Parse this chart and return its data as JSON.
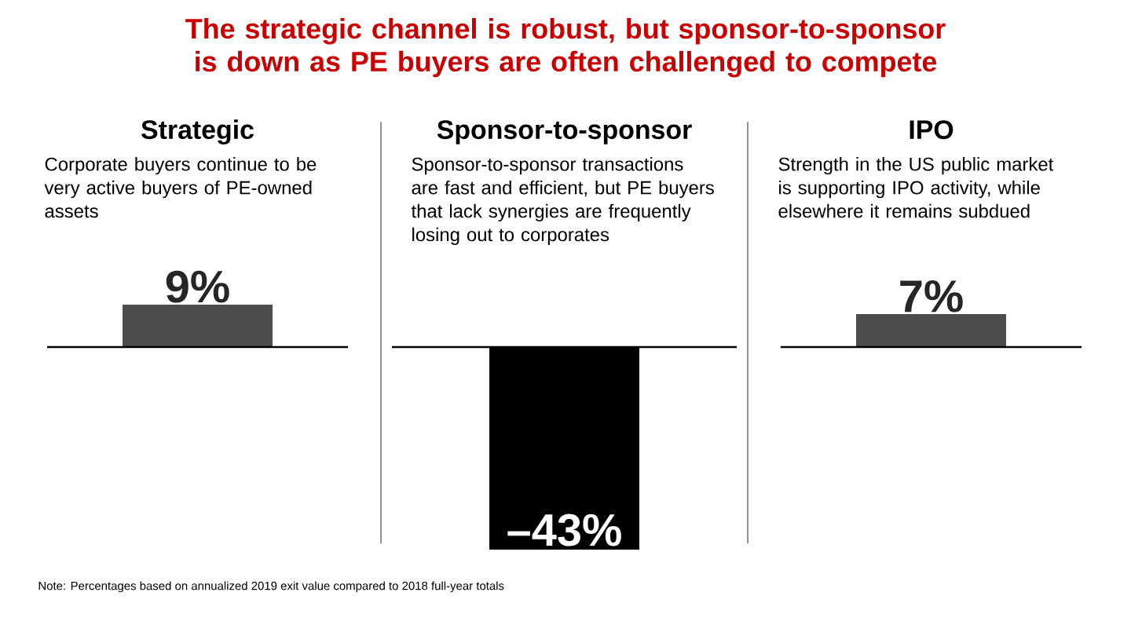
{
  "chart_data": {
    "type": "bar",
    "title": "The strategic channel is robust, but sponsor-to-sponsor is down as PE buyers are often challenged to compete",
    "categories": [
      "Strategic",
      "Sponsor-to-sponsor",
      "IPO"
    ],
    "values": [
      9,
      -43,
      7
    ],
    "ref_lines": [
      {
        "axis": "y",
        "value": 0,
        "color": "#000000"
      }
    ],
    "colors": [
      "#4d4d4d",
      "#000000",
      "#4d4d4d"
    ],
    "value_labels": [
      "9%",
      "–43%",
      "7%"
    ],
    "annotations": [
      "Corporate buyers continue to be very active buyers of PE-owned assets",
      "Sponsor-to-sponsor transactions are fast and efficient, but PE buyers that lack synergies are frequently losing out to corporates",
      "Strength in the US public market is supporting IPO activity, while elsewhere it remains subdued",
      "Note: Percentages based on annualized 2019 exit value compared to 2018 full-year totals"
    ]
  }
}
